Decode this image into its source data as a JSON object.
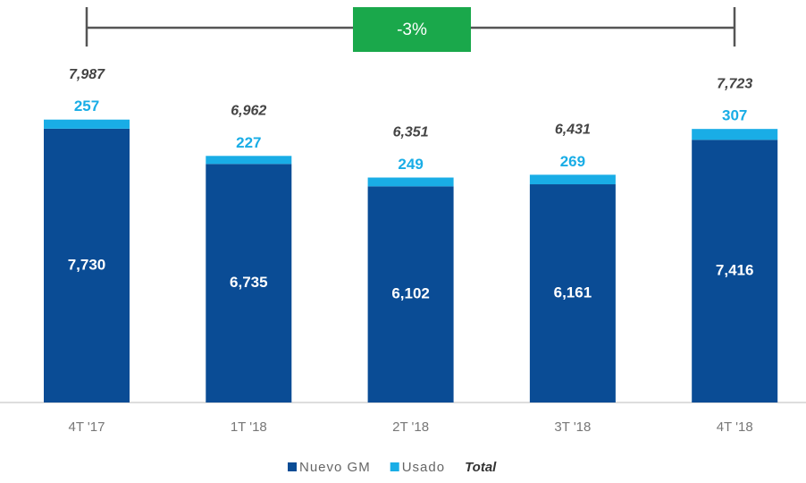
{
  "chart_data": {
    "type": "stacked_bar",
    "categories": [
      "4T '17",
      "1T '18",
      "2T '18",
      "3T '18",
      "4T '18"
    ],
    "series": [
      {
        "name": "Nuevo GM",
        "color": "#0a4c95",
        "values": [
          7730,
          6735,
          6102,
          6161,
          7416
        ],
        "value_labels": [
          "7,730",
          "6,735",
          "6,102",
          "6,161",
          "7,416"
        ]
      },
      {
        "name": "Usado",
        "color": "#19ade6",
        "values": [
          257,
          227,
          249,
          269,
          307
        ]
      },
      {
        "name": "Total",
        "values": [
          7987,
          6962,
          6351,
          6431,
          7723
        ],
        "value_labels": [
          "7,987",
          "6,962",
          "6,351",
          "6,431",
          "7,723"
        ]
      }
    ],
    "annotation": "-3%",
    "ylim": [
      0,
      10000
    ]
  }
}
